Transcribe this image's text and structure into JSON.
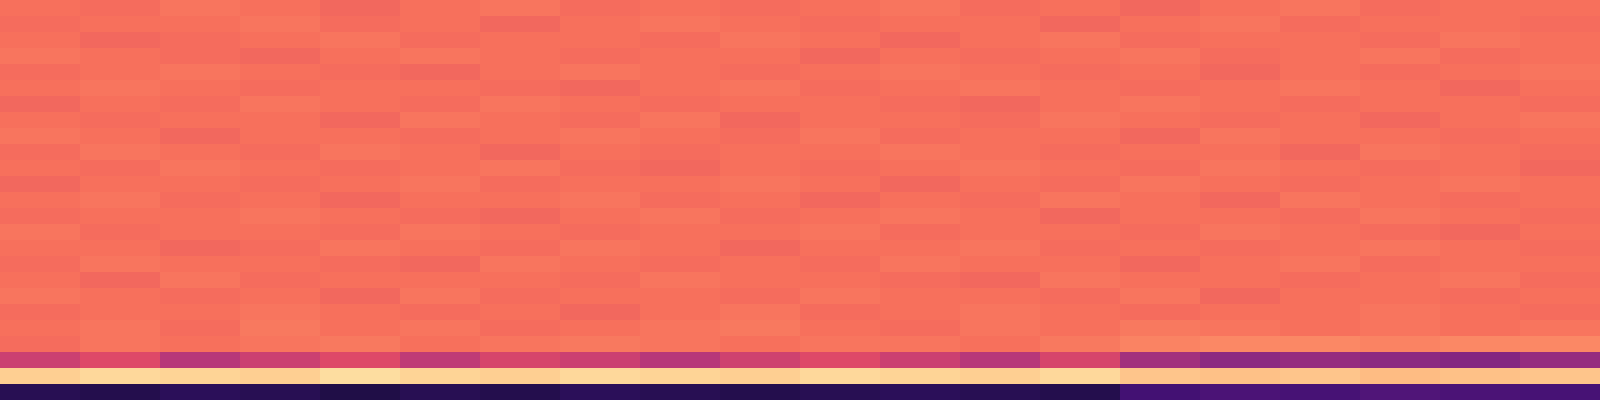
{
  "chart_data": {
    "type": "heatmap",
    "tick_labels": false,
    "grid": false,
    "xlim": [
      0,
      20
    ],
    "ylim": [
      0,
      25
    ],
    "value_range": [
      0,
      1
    ],
    "cells": [
      [
        0.7,
        0.69,
        0.71,
        0.7,
        0.68,
        0.7,
        0.71,
        0.69,
        0.7,
        0.69,
        0.7,
        0.71,
        0.69,
        0.7,
        0.68,
        0.7,
        0.71,
        0.69,
        0.7,
        0.7
      ],
      [
        0.69,
        0.7,
        0.7,
        0.71,
        0.69,
        0.7,
        0.68,
        0.7,
        0.71,
        0.7,
        0.69,
        0.7,
        0.7,
        0.68,
        0.7,
        0.71,
        0.69,
        0.7,
        0.7,
        0.69
      ],
      [
        0.7,
        0.68,
        0.69,
        0.7,
        0.71,
        0.69,
        0.7,
        0.7,
        0.69,
        0.71,
        0.7,
        0.68,
        0.7,
        0.71,
        0.69,
        0.7,
        0.7,
        0.69,
        0.71,
        0.7
      ],
      [
        0.71,
        0.7,
        0.69,
        0.68,
        0.7,
        0.71,
        0.7,
        0.69,
        0.7,
        0.7,
        0.68,
        0.7,
        0.69,
        0.7,
        0.71,
        0.69,
        0.7,
        0.71,
        0.69,
        0.7
      ],
      [
        0.69,
        0.7,
        0.71,
        0.7,
        0.69,
        0.68,
        0.7,
        0.71,
        0.7,
        0.69,
        0.7,
        0.71,
        0.7,
        0.69,
        0.7,
        0.68,
        0.7,
        0.69,
        0.7,
        0.71
      ],
      [
        0.7,
        0.71,
        0.7,
        0.69,
        0.7,
        0.7,
        0.69,
        0.68,
        0.7,
        0.71,
        0.69,
        0.7,
        0.71,
        0.7,
        0.69,
        0.7,
        0.71,
        0.7,
        0.68,
        0.7
      ],
      [
        0.68,
        0.7,
        0.69,
        0.71,
        0.7,
        0.69,
        0.71,
        0.7,
        0.69,
        0.7,
        0.7,
        0.69,
        0.68,
        0.7,
        0.71,
        0.7,
        0.69,
        0.7,
        0.7,
        0.69
      ],
      [
        0.7,
        0.69,
        0.7,
        0.7,
        0.68,
        0.71,
        0.7,
        0.69,
        0.71,
        0.68,
        0.7,
        0.7,
        0.69,
        0.71,
        0.7,
        0.69,
        0.7,
        0.68,
        0.7,
        0.71
      ],
      [
        0.71,
        0.7,
        0.68,
        0.7,
        0.7,
        0.69,
        0.7,
        0.71,
        0.7,
        0.69,
        0.71,
        0.69,
        0.7,
        0.7,
        0.68,
        0.71,
        0.7,
        0.7,
        0.69,
        0.7
      ],
      [
        0.69,
        0.71,
        0.7,
        0.69,
        0.71,
        0.7,
        0.68,
        0.7,
        0.69,
        0.7,
        0.7,
        0.71,
        0.7,
        0.69,
        0.7,
        0.7,
        0.68,
        0.71,
        0.7,
        0.69
      ],
      [
        0.7,
        0.69,
        0.71,
        0.7,
        0.69,
        0.7,
        0.71,
        0.69,
        0.68,
        0.7,
        0.69,
        0.7,
        0.71,
        0.7,
        0.69,
        0.71,
        0.7,
        0.69,
        0.7,
        0.68
      ],
      [
        0.68,
        0.7,
        0.7,
        0.69,
        0.7,
        0.71,
        0.69,
        0.7,
        0.7,
        0.71,
        0.7,
        0.68,
        0.7,
        0.69,
        0.71,
        0.7,
        0.69,
        0.7,
        0.71,
        0.7
      ],
      [
        0.7,
        0.71,
        0.69,
        0.7,
        0.68,
        0.7,
        0.7,
        0.71,
        0.69,
        0.7,
        0.68,
        0.7,
        0.69,
        0.71,
        0.7,
        0.68,
        0.71,
        0.7,
        0.69,
        0.7
      ],
      [
        0.69,
        0.7,
        0.7,
        0.71,
        0.7,
        0.69,
        0.68,
        0.7,
        0.71,
        0.69,
        0.7,
        0.71,
        0.7,
        0.68,
        0.7,
        0.7,
        0.69,
        0.71,
        0.7,
        0.69
      ],
      [
        0.71,
        0.69,
        0.7,
        0.7,
        0.69,
        0.71,
        0.7,
        0.69,
        0.7,
        0.7,
        0.71,
        0.69,
        0.7,
        0.7,
        0.69,
        0.71,
        0.7,
        0.69,
        0.68,
        0.7
      ],
      [
        0.7,
        0.7,
        0.68,
        0.69,
        0.71,
        0.7,
        0.69,
        0.71,
        0.7,
        0.68,
        0.7,
        0.7,
        0.71,
        0.69,
        0.7,
        0.69,
        0.7,
        0.71,
        0.7,
        0.69
      ],
      [
        0.69,
        0.71,
        0.7,
        0.7,
        0.69,
        0.68,
        0.71,
        0.7,
        0.69,
        0.7,
        0.69,
        0.71,
        0.7,
        0.7,
        0.68,
        0.7,
        0.71,
        0.69,
        0.7,
        0.7
      ],
      [
        0.7,
        0.68,
        0.71,
        0.69,
        0.7,
        0.7,
        0.7,
        0.69,
        0.71,
        0.7,
        0.7,
        0.69,
        0.68,
        0.71,
        0.7,
        0.7,
        0.69,
        0.7,
        0.71,
        0.69
      ],
      [
        0.71,
        0.7,
        0.69,
        0.7,
        0.68,
        0.71,
        0.69,
        0.7,
        0.7,
        0.69,
        0.71,
        0.7,
        0.7,
        0.69,
        0.71,
        0.68,
        0.7,
        0.7,
        0.69,
        0.7
      ],
      [
        0.69,
        0.7,
        0.7,
        0.71,
        0.7,
        0.69,
        0.7,
        0.68,
        0.7,
        0.71,
        0.69,
        0.7,
        0.71,
        0.7,
        0.69,
        0.7,
        0.7,
        0.71,
        0.7,
        0.69
      ],
      [
        0.7,
        0.71,
        0.69,
        0.72,
        0.7,
        0.71,
        0.69,
        0.7,
        0.71,
        0.72,
        0.7,
        0.69,
        0.71,
        0.7,
        0.72,
        0.71,
        0.7,
        0.71,
        0.7,
        0.71
      ],
      [
        0.69,
        0.71,
        0.7,
        0.71,
        0.72,
        0.7,
        0.71,
        0.72,
        0.71,
        0.7,
        0.71,
        0.71,
        0.7,
        0.72,
        0.74,
        0.75,
        0.75,
        0.74,
        0.75,
        0.75
      ],
      [
        0.55,
        0.6,
        0.5,
        0.55,
        0.6,
        0.52,
        0.58,
        0.55,
        0.5,
        0.56,
        0.6,
        0.55,
        0.5,
        0.58,
        0.45,
        0.4,
        0.42,
        0.4,
        0.38,
        0.42
      ],
      [
        0.9,
        0.92,
        0.91,
        0.9,
        0.93,
        0.91,
        0.9,
        0.92,
        0.91,
        0.9,
        0.92,
        0.91,
        0.9,
        0.92,
        0.88,
        0.87,
        0.88,
        0.86,
        0.87,
        0.88
      ],
      [
        0.15,
        0.14,
        0.16,
        0.15,
        0.13,
        0.15,
        0.14,
        0.16,
        0.15,
        0.14,
        0.15,
        0.16,
        0.15,
        0.14,
        0.22,
        0.24,
        0.23,
        0.25,
        0.24,
        0.23
      ]
    ]
  }
}
